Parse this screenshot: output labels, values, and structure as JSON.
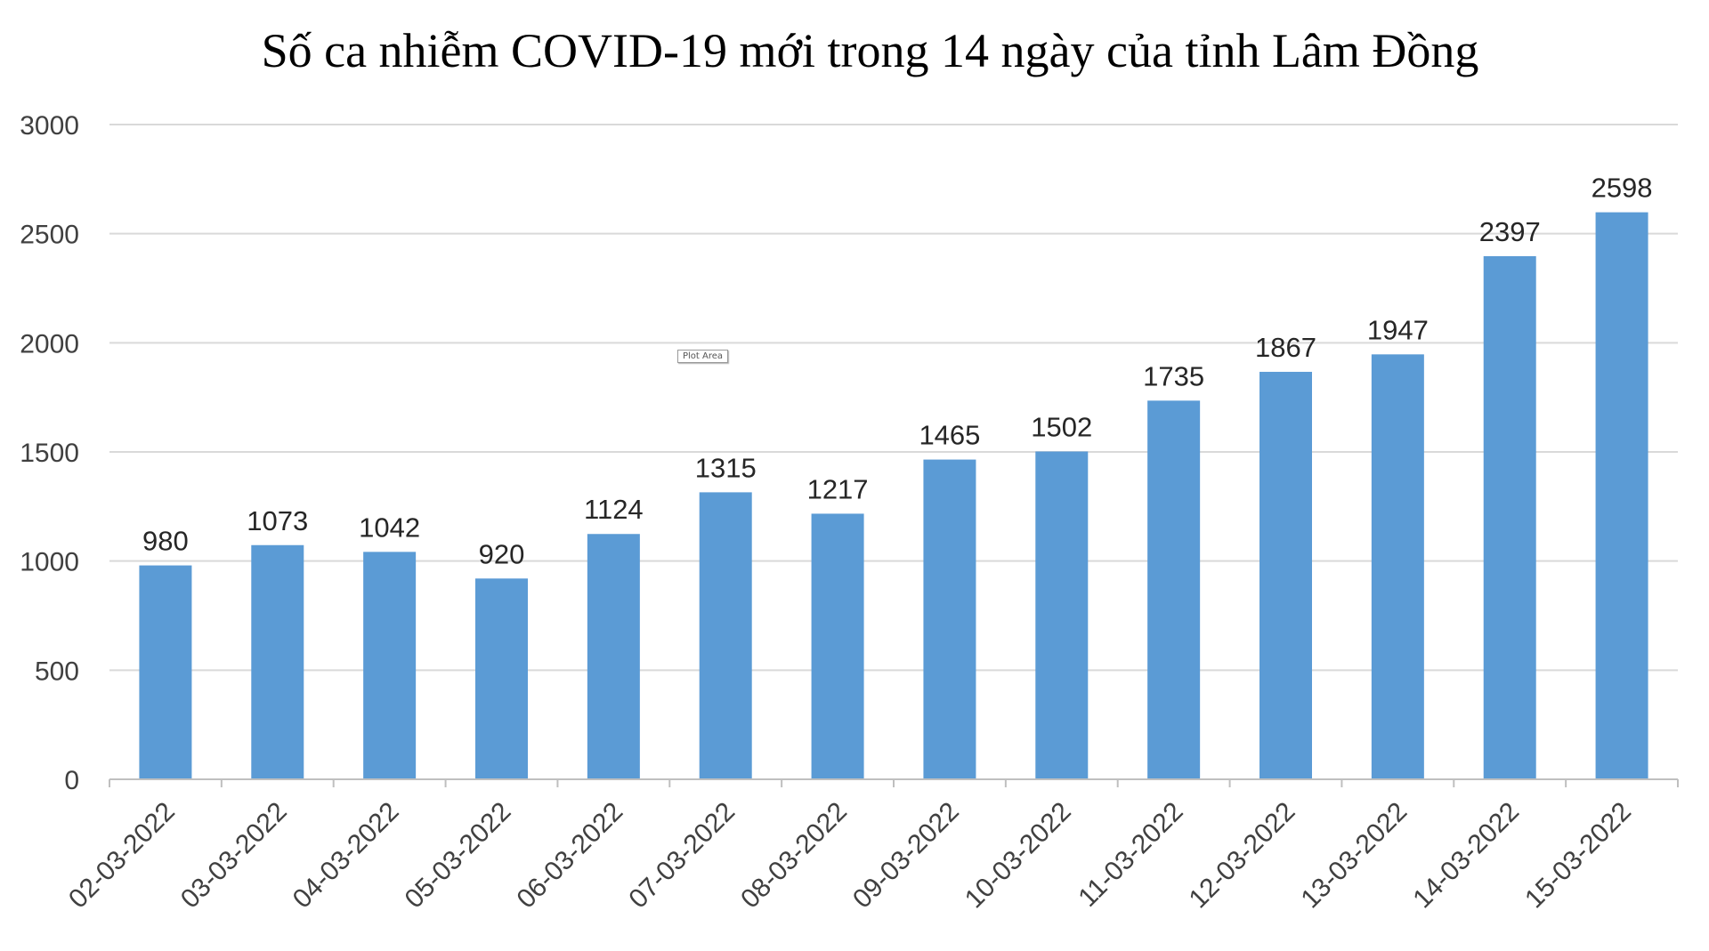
{
  "chart_data": {
    "type": "bar",
    "title": "Số ca nhiễm COVID-19 mới trong 14 ngày của tỉnh Lâm Đồng",
    "xlabel": "",
    "ylabel": "",
    "categories": [
      "02-03-2022",
      "03-03-2022",
      "04-03-2022",
      "05-03-2022",
      "06-03-2022",
      "07-03-2022",
      "08-03-2022",
      "09-03-2022",
      "10-03-2022",
      "11-03-2022",
      "12-03-2022",
      "13-03-2022",
      "14-03-2022",
      "15-03-2022"
    ],
    "values": [
      980,
      1073,
      1042,
      920,
      1124,
      1315,
      1217,
      1465,
      1502,
      1735,
      1867,
      1947,
      2397,
      2598
    ],
    "ylim": [
      0,
      3000
    ],
    "yticks": [
      0,
      500,
      1000,
      1500,
      2000,
      2500,
      3000
    ],
    "grid": true,
    "legend": "none",
    "bar_color": "#5b9bd5",
    "data_labels": true
  },
  "ui": {
    "plot_area_tooltip": "Plot Area"
  }
}
